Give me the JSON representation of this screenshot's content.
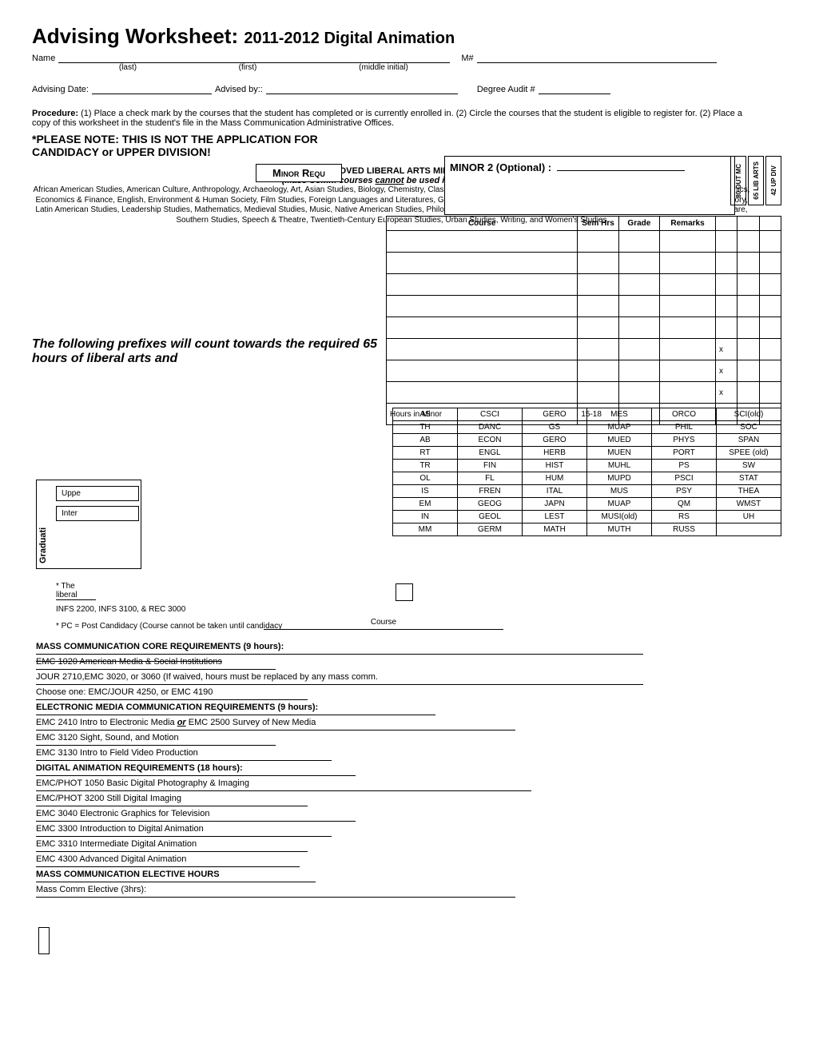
{
  "title_main": "Advising Worksheet:",
  "title_sub": "2011-2012 Digital Animation",
  "labels": {
    "name": "Name",
    "last": "(last)",
    "first": "(first)",
    "mi": "(middle initial)",
    "m_num": "M#",
    "adv_date": "Advising Date:",
    "adv_by": "Advised by::",
    "degree_audit": "Degree Audit #"
  },
  "procedure_bold": "Procedure:",
  "procedure_text": "(1) Place a check mark by the courses that the student has completed or is currently enrolled in. (2) Circle the courses that the student is eligible to register for.  (2) Place a copy of this worksheet in the student's file in the Mass Communication Administrative Offices.",
  "note": "*PLEASE NOTE:  THIS IS NOT THE APPLICATION FOR CANDIDACY or UPPER DIVISION!",
  "minor_requ": "Minor Requ",
  "minor2": "MINOR 2 (Optional) :",
  "vert": {
    "a": "80 OUT MC",
    "b": "65 LIB ARTS",
    "c": "42 UP DIV"
  },
  "course_hdr": {
    "course": "Course",
    "sem": "Sem Hrs",
    "grade": "Grade",
    "remarks": "Remarks"
  },
  "approved": {
    "h": "APPROVED LIBERAL ARTS MINORS",
    "sub": "(Mass Comm courses cannot be used in your minor)",
    "body": "African American Studies, American Culture, Anthropology, Archaeology, Art, Asian Studies, Biology, Chemistry, Classical Studies, Computer Science, Dance, Early Modern European Studies, Economics, Economics & Finance, English, Environment & Human Society, Film Studies, Foreign Languages and Literatures, Geosciences, Gerontology, Global Studies, Great Books, Health Care Services, History, Latin American Studies, Leadership Studies,  Mathematics, Medieval Studies, Music, Native American Studies, Philosophy, Physics & Astronomy, Political Science, Psychology, Sociology, Social Welfare, Southern Studies, Speech & Theatre, Twentieth-Century European Studies, Urban Studies, Writing, and Women's Studies"
  },
  "hours_in_minor": "Hours in Minor",
  "hours_range": "15-18",
  "prefix_heading": "The following prefixes will count towards the required 65 hours of liberal arts and",
  "prefix_grid": [
    [
      "AS",
      "CSCI",
      "GERO",
      "MES",
      "ORCO",
      "SCI(old)"
    ],
    [
      "TH",
      "DANC",
      "GS",
      "MUAP",
      "PHIL",
      "SOC"
    ],
    [
      "AB",
      "ECON",
      "GERO",
      "MUED",
      "PHYS",
      "SPAN"
    ],
    [
      "RT",
      "ENGL",
      "HERB",
      "MUEN",
      "PORT",
      "SPEE (old)"
    ],
    [
      "TR",
      "FIN",
      "HIST",
      "MUHL",
      "PS",
      "SW"
    ],
    [
      "OL",
      "FL",
      "HUM",
      "MUPD",
      "PSCI",
      "STAT"
    ],
    [
      "IS",
      "FREN",
      "ITAL",
      "MUS",
      "PSY",
      "THEA"
    ],
    [
      "EM",
      "GEOG",
      "JAPN",
      "MUAP",
      "QM",
      "WMST"
    ],
    [
      "IN",
      "GEOL",
      "LEST",
      "MUSI(old)",
      "RS",
      "UH"
    ],
    [
      "MM",
      "GERM",
      "MATH",
      "MUTH",
      "RUSS",
      ""
    ]
  ],
  "grad": {
    "upper": "Uppe",
    "inter": "Inter",
    "label": "Graduati"
  },
  "footnotes": {
    "a": "* The",
    "a2": "liberal",
    "b": "INFS 2200, INFS 3100, & REC 3000",
    "c": "* PC = Post Candidacy (Course cannot be taken until candidacy",
    "course": "Course",
    "sem": "Sem Hrs"
  },
  "sections": {
    "mc_core": "MASS COMMUNICATION CORE REQUIREMENTS (9 hours):",
    "emc1020": "EMC 1020 American Media & Social Institutions",
    "jour2710": "JOUR 2710,EMC 3020, or 3060 (If waived, hours must be replaced by any mass comm.",
    "choose": "Choose one: EMC/JOUR 4250, or EMC 4190",
    "emc_req": "ELECTRONIC MEDIA COMMUNICATION REQUIREMENTS (9 hours):",
    "emc2410": "EMC 2410 Intro to Electronic Media or EMC 2500 Survey of New Media",
    "emc3120": "EMC 3120 Sight, Sound, and Motion",
    "emc3130": "EMC 3130 Intro to Field Video Production",
    "da_req": "DIGITAL ANIMATION REQUIREMENTS (18 hours):",
    "phot1050": "EMC/PHOT 1050 Basic Digital Photography & Imaging",
    "phot3200": "EMC/PHOT 3200 Still Digital Imaging",
    "emc3040": "EMC 3040 Electronic Graphics for  Television",
    "emc3300": "EMC 3300 Introduction to Digital Animation",
    "emc3310": "EMC 3310 Intermediate Digital Animation",
    "emc4300": "EMC 4300 Advanced Digital Animation",
    "elective_hdr": "MASS COMMUNICATION ELECTIVE HOURS",
    "elective": "Mass Comm Elective (3hrs):"
  },
  "x_marks": [
    "x",
    "x",
    "x"
  ]
}
